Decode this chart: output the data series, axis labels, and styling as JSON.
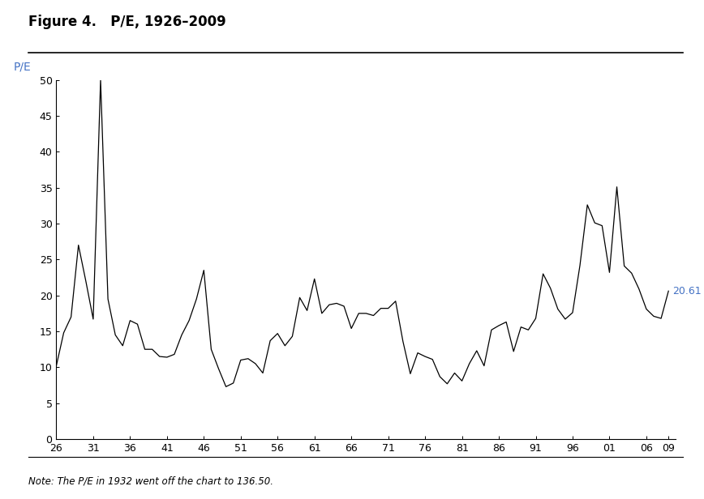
{
  "title": "Figure 4.   P/E, 1926–2009",
  "ylabel": "P/E",
  "ylabel_color": "#4472C4",
  "note": "Note: The P/E in 1932 went off the chart to 136.50.",
  "annotation_value": "20.61",
  "annotation_year": 2009,
  "annotation_color": "#4472C4",
  "line_color": "#000000",
  "background_color": "#ffffff",
  "ylim": [
    0,
    50
  ],
  "yticks": [
    0,
    5,
    10,
    15,
    20,
    25,
    30,
    35,
    40,
    45,
    50
  ],
  "xlim": [
    1926,
    2010
  ],
  "xtick_positions": [
    1926,
    1931,
    1936,
    1941,
    1946,
    1951,
    1956,
    1961,
    1966,
    1971,
    1976,
    1981,
    1986,
    1991,
    1996,
    2001,
    2006,
    2009
  ],
  "xtick_labels": [
    "26",
    "31",
    "36",
    "41",
    "46",
    "51",
    "56",
    "61",
    "66",
    "71",
    "76",
    "81",
    "86",
    "91",
    "96",
    "01",
    "06",
    "09"
  ],
  "years": [
    1926,
    1927,
    1928,
    1929,
    1930,
    1931,
    1932,
    1933,
    1934,
    1935,
    1936,
    1937,
    1938,
    1939,
    1940,
    1941,
    1942,
    1943,
    1944,
    1945,
    1946,
    1947,
    1948,
    1949,
    1950,
    1951,
    1952,
    1953,
    1954,
    1955,
    1956,
    1957,
    1958,
    1959,
    1960,
    1961,
    1962,
    1963,
    1964,
    1965,
    1966,
    1967,
    1968,
    1969,
    1970,
    1971,
    1972,
    1973,
    1974,
    1975,
    1976,
    1977,
    1978,
    1979,
    1980,
    1981,
    1982,
    1983,
    1984,
    1985,
    1986,
    1987,
    1988,
    1989,
    1990,
    1991,
    1992,
    1993,
    1994,
    1995,
    1996,
    1997,
    1998,
    1999,
    2000,
    2001,
    2002,
    2003,
    2004,
    2005,
    2006,
    2007,
    2008,
    2009
  ],
  "pe_values": [
    10.2,
    14.8,
    17.0,
    27.0,
    22.0,
    16.7,
    50.0,
    19.5,
    14.5,
    13.0,
    16.5,
    16.0,
    12.5,
    12.5,
    11.5,
    11.4,
    11.8,
    14.5,
    16.5,
    19.5,
    23.5,
    12.5,
    9.8,
    7.3,
    7.8,
    11.0,
    11.2,
    10.5,
    9.2,
    13.7,
    14.7,
    13.0,
    14.3,
    19.7,
    17.9,
    22.3,
    17.5,
    18.7,
    18.9,
    18.5,
    15.4,
    17.5,
    17.5,
    17.2,
    18.2,
    18.2,
    19.2,
    13.6,
    9.1,
    12.0,
    11.5,
    11.1,
    8.7,
    7.7,
    9.2,
    8.1,
    10.5,
    12.3,
    10.2,
    15.2,
    15.8,
    16.3,
    12.2,
    15.6,
    15.2,
    16.8,
    23.0,
    21.0,
    18.1,
    16.7,
    17.6,
    24.2,
    32.6,
    30.1,
    29.7,
    23.2,
    35.1,
    24.1,
    23.1,
    20.9,
    18.1,
    17.1,
    16.8,
    20.61
  ]
}
